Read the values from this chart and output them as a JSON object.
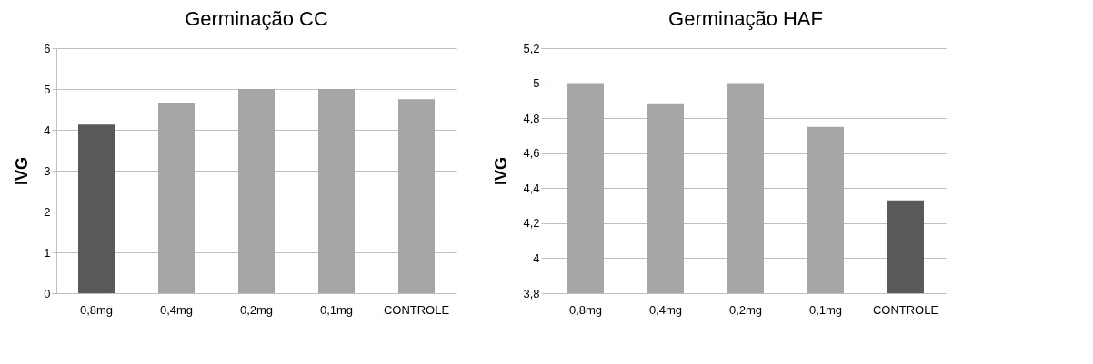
{
  "chart_data": [
    {
      "type": "bar",
      "title": "Germinação CC",
      "ylabel": "IVG",
      "categories": [
        "0,8mg",
        "0,4mg",
        "0,2mg",
        "0,1mg",
        "CONTROLE"
      ],
      "values": [
        4.13,
        4.65,
        5,
        5,
        4.75
      ],
      "colors": [
        "#595959",
        "#a6a6a6",
        "#a6a6a6",
        "#a6a6a6",
        "#a6a6a6"
      ],
      "ylim": [
        0,
        6
      ],
      "yticks": [
        0,
        1,
        2,
        3,
        4,
        5,
        6
      ],
      "grid": "y"
    },
    {
      "type": "bar",
      "title": "Germinação HAF",
      "ylabel": "IVG",
      "categories": [
        "0,8mg",
        "0,4mg",
        "0,2mg",
        "0,1mg",
        "CONTROLE"
      ],
      "values": [
        5,
        4.88,
        5,
        4.75,
        4.33
      ],
      "colors": [
        "#a6a6a6",
        "#a6a6a6",
        "#a6a6a6",
        "#a6a6a6",
        "#595959"
      ],
      "ylim": [
        3.8,
        5.2
      ],
      "yticks": [
        {
          "value": 3.8,
          "label": "3,8"
        },
        {
          "value": 4,
          "label": "4"
        },
        {
          "value": 4.2,
          "label": "4,2"
        },
        {
          "value": 4.4,
          "label": "4,4"
        },
        {
          "value": 4.6,
          "label": "4,6"
        },
        {
          "value": 4.8,
          "label": "4,8"
        },
        {
          "value": 5,
          "label": "5"
        },
        {
          "value": 5.2,
          "label": "5,2"
        }
      ],
      "grid": "y"
    }
  ]
}
